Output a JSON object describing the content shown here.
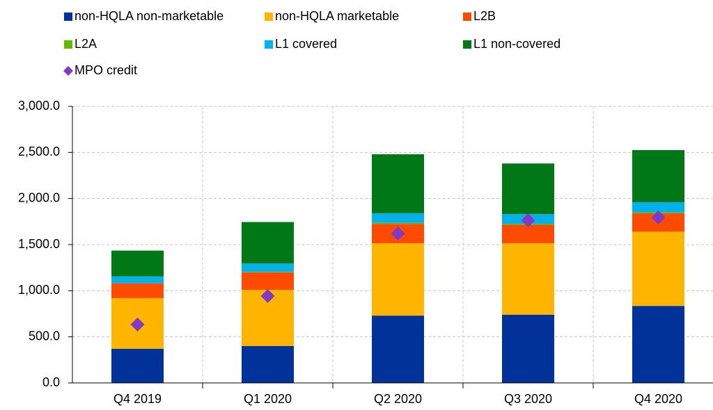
{
  "chart_data": {
    "type": "stacked_bar",
    "categories": [
      "Q4 2019",
      "Q1 2020",
      "Q2 2020",
      "Q3 2020",
      "Q4 2020"
    ],
    "series": [
      {
        "name": "non-HQLA non-marketable",
        "color": "#003299",
        "values": [
          370,
          400,
          730,
          740,
          835
        ]
      },
      {
        "name": "non-HQLA marketable",
        "color": "#ffb400",
        "values": [
          550,
          610,
          785,
          775,
          805
        ]
      },
      {
        "name": "L2B",
        "color": "#ff4b00",
        "values": [
          160,
          190,
          210,
          200,
          200
        ]
      },
      {
        "name": "L2A",
        "color": "#65b800",
        "values": [
          0,
          5,
          10,
          10,
          10
        ]
      },
      {
        "name": "L1 covered",
        "color": "#00b1ea",
        "values": [
          75,
          90,
          105,
          105,
          110
        ]
      },
      {
        "name": "L1 non-covered",
        "color": "#007816",
        "values": [
          280,
          450,
          640,
          550,
          565
        ]
      }
    ],
    "markers": {
      "name": "MPO credit",
      "color": "#8139c6",
      "values": [
        633,
        942,
        1620,
        1763,
        1795
      ]
    },
    "ylim": [
      0,
      3000
    ],
    "yticks": [
      {
        "value": 0,
        "label": "0.0"
      },
      {
        "value": 500,
        "label": "500.0"
      },
      {
        "value": 1000,
        "label": "1,000.0"
      },
      {
        "value": 1500,
        "label": "1,500.0"
      },
      {
        "value": 2000,
        "label": "2,000.0"
      },
      {
        "value": 2500,
        "label": "2,500.0"
      },
      {
        "value": 3000,
        "label": "3,000.0"
      }
    ],
    "grid": true
  }
}
